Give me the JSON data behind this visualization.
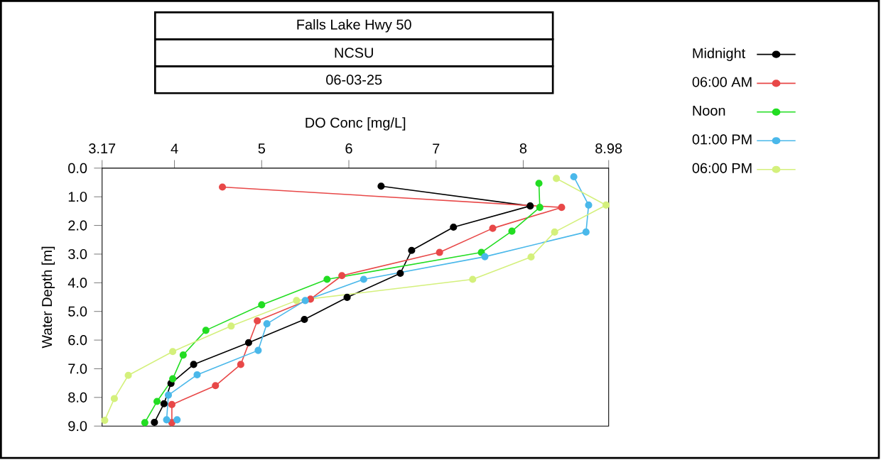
{
  "chart_data": {
    "type": "line",
    "title": "Falls Lake Hwy 50",
    "subtitle": "NCSU",
    "annotations": [
      "06-03-25"
    ],
    "xlabel": "DO Conc [mg/L]",
    "ylabel": "Water Depth [m]",
    "xlim": [
      3.17,
      8.98
    ],
    "xticks": [
      3.17,
      4,
      5,
      6,
      7,
      8,
      8.98
    ],
    "ylim": [
      9,
      0
    ],
    "yticks": [
      {
        "value": 0,
        "label": "0.0"
      },
      {
        "value": 1,
        "label": "1.0"
      },
      {
        "value": 2,
        "label": "2.0"
      },
      {
        "value": 3,
        "label": "3.0"
      },
      {
        "value": 4,
        "label": "4.0"
      },
      {
        "value": 5,
        "label": "5.0"
      },
      {
        "value": 6,
        "label": "6.0"
      },
      {
        "value": 7,
        "label": "7.0"
      },
      {
        "value": 8,
        "label": "8.0"
      },
      {
        "value": 9,
        "label": "9.0"
      }
    ],
    "marker": "circle",
    "line_style": "solid",
    "grid": false,
    "legend": "right",
    "series": [
      {
        "name": "Midnight",
        "color": "#000000",
        "x": [
          6.37,
          8.08,
          7.2,
          6.72,
          6.59,
          5.98,
          5.49,
          4.85,
          4.22,
          3.96,
          3.88,
          3.77
        ],
        "values": [
          0.63,
          1.32,
          2.06,
          2.87,
          3.67,
          4.51,
          5.28,
          6.09,
          6.85,
          7.51,
          8.22,
          8.87
        ]
      },
      {
        "name": "06:00 AM",
        "color": "#e84848",
        "x": [
          4.55,
          8.44,
          7.65,
          7.04,
          5.92,
          5.56,
          4.95,
          4.76,
          4.47,
          3.97,
          3.97
        ],
        "values": [
          0.66,
          1.37,
          2.1,
          2.94,
          3.75,
          4.57,
          5.33,
          6.85,
          7.59,
          8.25,
          8.88
        ]
      },
      {
        "name": "Noon",
        "color": "#22dd22",
        "x": [
          8.18,
          8.19,
          7.87,
          7.52,
          5.75,
          5.0,
          4.36,
          4.1,
          3.98,
          3.8,
          3.66
        ],
        "values": [
          0.53,
          1.37,
          2.2,
          2.94,
          3.88,
          4.77,
          5.66,
          6.52,
          7.35,
          8.14,
          8.88
        ]
      },
      {
        "name": "01:00 PM",
        "color": "#4ab8ea",
        "x": [
          8.58,
          8.75,
          8.72,
          7.56,
          6.17,
          5.5,
          5.06,
          4.96,
          4.26,
          3.93,
          3.91,
          4.03
        ],
        "values": [
          0.3,
          1.29,
          2.23,
          3.09,
          3.88,
          4.62,
          5.43,
          6.36,
          7.21,
          7.92,
          8.78,
          8.78
        ]
      },
      {
        "name": "06:00 PM",
        "color": "#d4f07c",
        "x": [
          8.38,
          8.95,
          8.36,
          8.09,
          7.42,
          5.4,
          4.65,
          3.98,
          3.47,
          3.31,
          3.2
        ],
        "values": [
          0.36,
          1.29,
          2.23,
          3.1,
          3.88,
          4.62,
          5.51,
          6.4,
          7.23,
          8.04,
          8.8
        ]
      }
    ]
  }
}
